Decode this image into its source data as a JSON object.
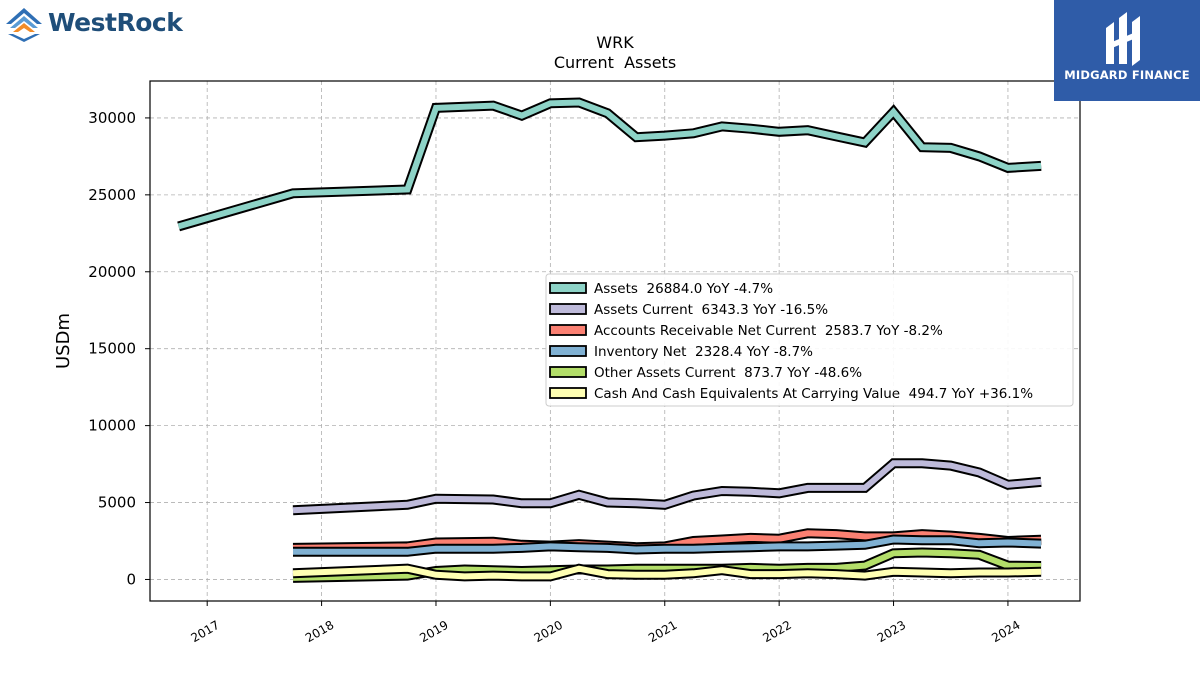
{
  "logos": {
    "left_text": "WestRock",
    "right_text": "MIDGARD FINANCE"
  },
  "chart_data": {
    "type": "area",
    "title": "WRK",
    "subtitle": "Current  Assets",
    "ylabel": "USDm",
    "xlabel": "",
    "xlim": [
      2016.5,
      2024.63
    ],
    "ylim": [
      -1400,
      32400
    ],
    "y_ticks": [
      0,
      5000,
      10000,
      15000,
      20000,
      25000,
      30000
    ],
    "x_ticks": [
      "2017",
      "2018",
      "2019",
      "2020",
      "2021",
      "2022",
      "2023",
      "2024"
    ],
    "grid": true,
    "legend_position": "center-right",
    "series": [
      {
        "name": "Assets  26884.0 YoY -4.7%",
        "color": "#8dd3c7",
        "x": [
          2016.75,
          2017.75,
          2018.75,
          2019.0,
          2019.5,
          2019.75,
          2020.0,
          2020.25,
          2020.5,
          2020.75,
          2021.0,
          2021.25,
          2021.5,
          2021.75,
          2022.0,
          2022.25,
          2022.5,
          2022.75,
          2023.0,
          2023.25,
          2023.5,
          2023.75,
          2024.0,
          2024.29
        ],
        "values": [
          22950,
          25100,
          25350,
          30650,
          30800,
          30150,
          30950,
          31000,
          30300,
          28750,
          28850,
          29000,
          29450,
          29300,
          29100,
          29200,
          28800,
          28400,
          30400,
          28100,
          28050,
          27500,
          26750,
          26884
        ]
      },
      {
        "name": "Assets Current  6343.3 YoY -16.5%",
        "color": "#bebada",
        "x": [
          2017.75,
          2018.75,
          2019.0,
          2019.5,
          2019.75,
          2020.0,
          2020.25,
          2020.5,
          2020.75,
          2021.0,
          2021.25,
          2021.5,
          2021.75,
          2022.0,
          2022.25,
          2022.5,
          2022.75,
          2023.0,
          2023.25,
          2023.5,
          2023.75,
          2024.0,
          2024.29
        ],
        "values": [
          4500,
          4850,
          5250,
          5200,
          4950,
          4950,
          5500,
          5000,
          4950,
          4850,
          5450,
          5750,
          5700,
          5600,
          5950,
          5950,
          5950,
          7550,
          7550,
          7400,
          6950,
          6150,
          6343
        ]
      },
      {
        "name": "Accounts Receivable Net Current  2583.7 YoY -8.2%",
        "color": "#fb8072",
        "x": [
          2017.75,
          2018.75,
          2019.0,
          2019.5,
          2019.75,
          2020.0,
          2020.25,
          2020.5,
          2020.75,
          2021.0,
          2021.25,
          2021.5,
          2021.75,
          2022.0,
          2022.25,
          2022.5,
          2022.75,
          2023.0,
          2023.25,
          2023.5,
          2023.75,
          2024.0,
          2024.29
        ],
        "values": [
          2050,
          2150,
          2400,
          2450,
          2250,
          2200,
          2300,
          2200,
          2100,
          2150,
          2500,
          2600,
          2700,
          2650,
          3000,
          2950,
          2800,
          2800,
          2950,
          2850,
          2700,
          2500,
          2584
        ]
      },
      {
        "name": "Inventory Net  2328.4 YoY -8.7%",
        "color": "#80b1d3",
        "x": [
          2017.75,
          2018.75,
          2019.0,
          2019.5,
          2019.75,
          2020.0,
          2020.25,
          2020.5,
          2020.75,
          2021.0,
          2021.25,
          2021.5,
          2021.75,
          2022.0,
          2022.25,
          2022.5,
          2022.75,
          2023.0,
          2023.25,
          2023.5,
          2023.75,
          2024.0,
          2024.29
        ],
        "values": [
          1800,
          1800,
          2000,
          2000,
          2050,
          2150,
          2100,
          2050,
          1950,
          2000,
          2000,
          2050,
          2100,
          2150,
          2150,
          2200,
          2250,
          2600,
          2550,
          2550,
          2350,
          2400,
          2328
        ]
      },
      {
        "name": "Other Assets Current  873.7 YoY -48.6%",
        "color": "#b3de69",
        "x": [
          2017.75,
          2018.75,
          2019.0,
          2019.25,
          2019.5,
          2019.75,
          2020.0,
          2020.25,
          2020.5,
          2020.75,
          2021.0,
          2021.25,
          2021.5,
          2021.75,
          2022.0,
          2022.25,
          2022.5,
          2022.75,
          2023.0,
          2023.25,
          2023.5,
          2023.75,
          2024.0,
          2024.29
        ],
        "values": [
          100,
          250,
          550,
          650,
          600,
          550,
          600,
          650,
          650,
          700,
          700,
          700,
          700,
          750,
          700,
          750,
          750,
          900,
          1700,
          1750,
          1700,
          1600,
          900,
          874
        ]
      },
      {
        "name": "Cash And Cash Equivalents At Carrying Value  494.7 YoY +36.1%",
        "color": "#ffffb3",
        "x": [
          2017.75,
          2018.75,
          2019.0,
          2019.25,
          2019.5,
          2019.75,
          2020.0,
          2020.25,
          2020.5,
          2020.75,
          2021.0,
          2021.25,
          2021.5,
          2021.75,
          2022.0,
          2022.25,
          2022.5,
          2022.75,
          2023.0,
          2023.25,
          2023.5,
          2023.75,
          2024.0,
          2024.29
        ],
        "values": [
          400,
          700,
          300,
          200,
          250,
          200,
          200,
          700,
          350,
          300,
          300,
          400,
          600,
          350,
          350,
          400,
          350,
          250,
          500,
          450,
          400,
          450,
          450,
          495
        ]
      }
    ]
  }
}
